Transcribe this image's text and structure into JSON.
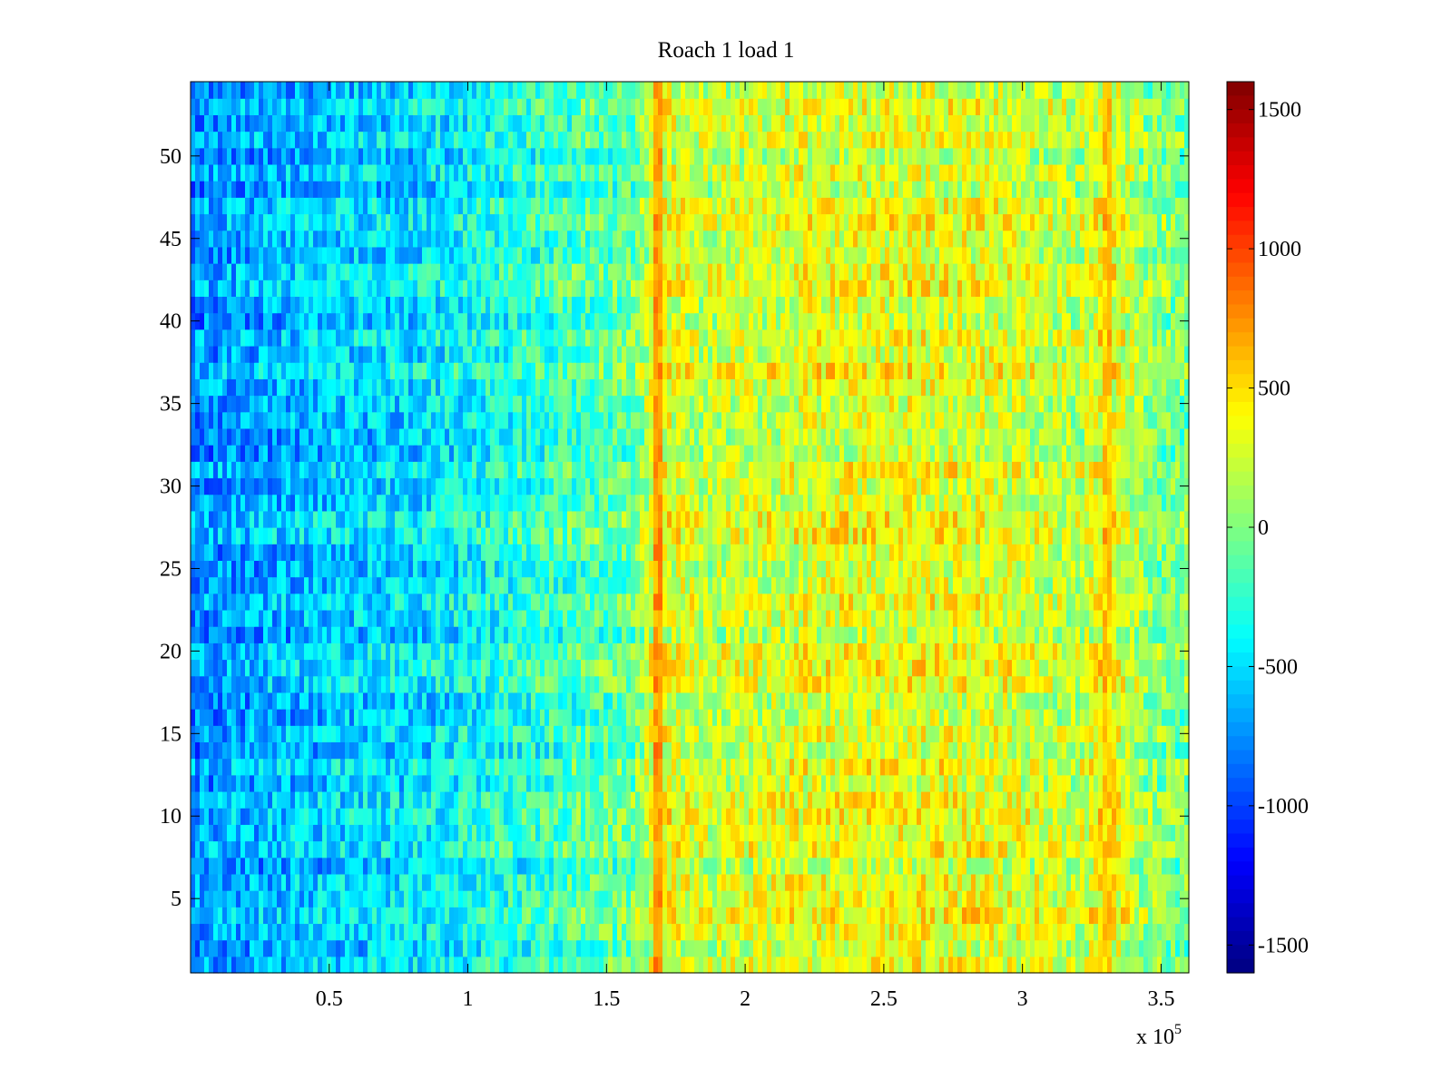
{
  "chart_data": {
    "type": "heatmap",
    "title": "Roach 1 load 1",
    "xlabel": "",
    "ylabel": "",
    "xlim": [
      0,
      360000
    ],
    "ylim": [
      0.5,
      54.5
    ],
    "x_tick_values": [
      50000,
      100000,
      150000,
      200000,
      250000,
      300000,
      350000
    ],
    "x_tick_labels": [
      "0.5",
      "1",
      "1.5",
      "2",
      "2.5",
      "3",
      "3.5"
    ],
    "x_exponent_label": {
      "base": "x 10",
      "exponent": "5"
    },
    "y_tick_values": [
      5,
      10,
      15,
      20,
      25,
      30,
      35,
      40,
      45,
      50
    ],
    "y_tick_labels": [
      "5",
      "10",
      "15",
      "20",
      "25",
      "30",
      "35",
      "40",
      "45",
      "50"
    ],
    "rows": 54,
    "colormap": "jet",
    "color_range": [
      -1600,
      1600
    ],
    "colorbar": {
      "tick_values": [
        1500,
        1000,
        500,
        0,
        -500,
        -1000,
        -1500
      ],
      "tick_labels": [
        "1500",
        "1000",
        "500",
        "0",
        "-500",
        "-1000",
        "-1500"
      ]
    },
    "value_trend": {
      "x": [
        0,
        20000,
        50000,
        80000,
        100000,
        130000,
        160000,
        168000,
        185000,
        220000,
        260000,
        290000,
        320000,
        330000,
        345000,
        360000
      ],
      "mean_value": [
        -760,
        -680,
        -560,
        -500,
        -400,
        -230,
        -60,
        380,
        190,
        300,
        330,
        300,
        170,
        420,
        40,
        -30
      ]
    },
    "notable_features": [
      {
        "x": 168000,
        "description": "vertical high-value band",
        "value": 900
      },
      {
        "x": 330000,
        "description": "vertical high-value band",
        "value": 700
      }
    ]
  }
}
